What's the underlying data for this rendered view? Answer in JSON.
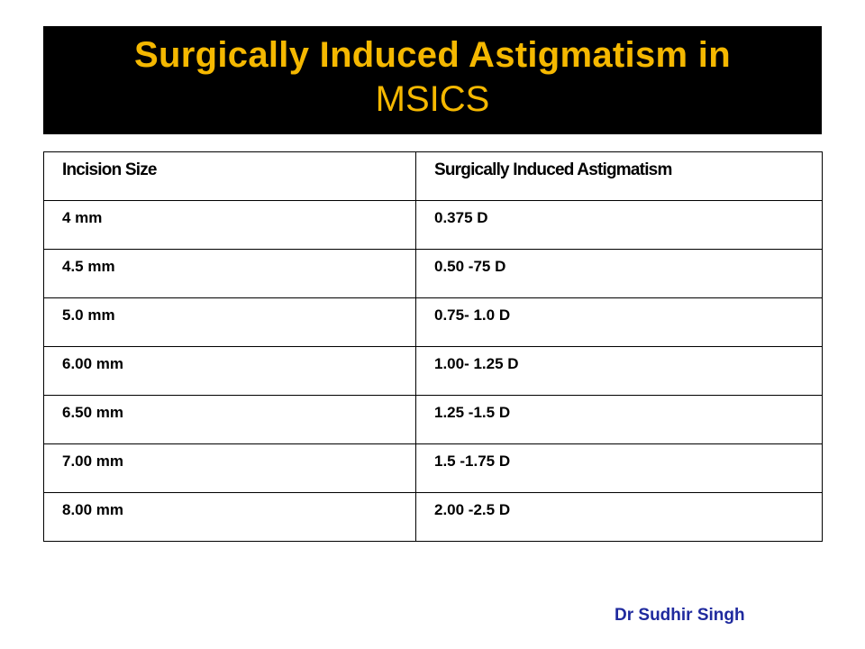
{
  "title": {
    "line1": "Surgically Induced Astigmatism in",
    "line2": "MSICS",
    "text_color": "#f5b800",
    "background_color": "#000000"
  },
  "table": {
    "headers": [
      "Incision Size",
      "Surgically Induced Astigmatism"
    ],
    "rows": [
      [
        "4 mm",
        "0.375 D"
      ],
      [
        "4.5 mm",
        "0.50 -75 D"
      ],
      [
        "5.0 mm",
        "0.75- 1.0 D"
      ],
      [
        "6.00 mm",
        "1.00- 1.25 D"
      ],
      [
        "6.50 mm",
        "1.25 -1.5 D"
      ],
      [
        "7.00 mm",
        "1.5 -1.75 D"
      ],
      [
        "8.00 mm",
        "2.00 -2.5 D"
      ]
    ]
  },
  "footer": {
    "author": "Dr Sudhir Singh",
    "author_color": "#1f2a9e"
  }
}
